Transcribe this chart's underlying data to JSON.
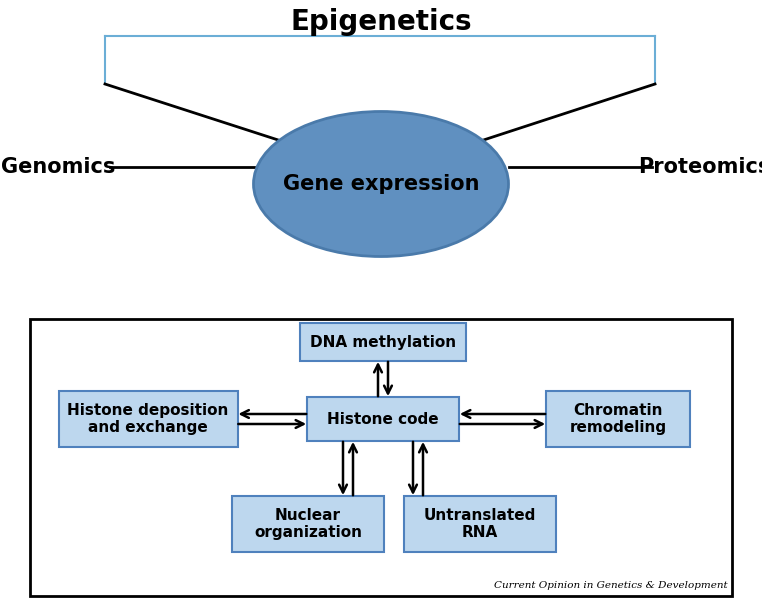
{
  "title": "Epigenetics",
  "gene_expression_label": "Gene expression",
  "genomics_label": "Genomics",
  "proteomics_label": "Proteomics",
  "ellipse_color": "#6090c0",
  "ellipse_edge_color": "#4a7aaa",
  "box_fill_color": "#bdd7ee",
  "box_edge_color": "#4f81bd",
  "epigenetics_line_color": "#6baed6",
  "boxes": {
    "dna_methylation": "DNA methylation",
    "histone_code": "Histone code",
    "histone_deposition": "Histone deposition\nand exchange",
    "chromatin_remodeling": "Chromatin\nremodeling",
    "nuclear_organization": "Nuclear\norganization",
    "untranslated_rna": "Untranslated\nRNA"
  },
  "citation": "Current Opinion in Genetics & Development",
  "background_color": "#ffffff",
  "figsize": [
    7.62,
    6.14
  ],
  "dpi": 100
}
